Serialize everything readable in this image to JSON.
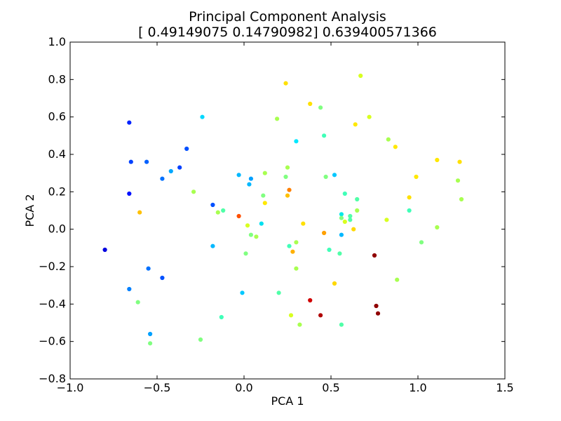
{
  "chart_data": {
    "type": "scatter",
    "title": "Principal Component Analysis",
    "subtitle": "[ 0.49149075  0.14790982] 0.639400571366",
    "xlabel": "PCA 1",
    "ylabel": "PCA 2",
    "xlim": [
      -1.0,
      1.5
    ],
    "ylim": [
      -0.8,
      1.0
    ],
    "grid": false,
    "xticks": [
      -1.0,
      -0.5,
      0.0,
      0.5,
      1.0,
      1.5
    ],
    "xtick_labels": [
      "−1.0",
      "−0.5",
      "0.0",
      "0.5",
      "1.0",
      "1.5"
    ],
    "yticks": [
      -0.8,
      -0.6,
      -0.4,
      -0.2,
      0.0,
      0.2,
      0.4,
      0.6,
      0.8,
      1.0
    ],
    "ytick_labels": [
      "−0.8",
      "−0.6",
      "−0.4",
      "−0.2",
      "0.0",
      "0.2",
      "0.4",
      "0.6",
      "0.8",
      "1.0"
    ],
    "colors": {
      "axes": "#000000",
      "background": "#ffffff"
    },
    "points": [
      {
        "x": -0.8,
        "y": -0.11,
        "color": "#0000e0"
      },
      {
        "x": -0.66,
        "y": 0.57,
        "color": "#0022ff"
      },
      {
        "x": -0.65,
        "y": 0.36,
        "color": "#0040ff"
      },
      {
        "x": -0.66,
        "y": 0.19,
        "color": "#0010ff"
      },
      {
        "x": -0.56,
        "y": 0.36,
        "color": "#0060ff"
      },
      {
        "x": -0.47,
        "y": 0.27,
        "color": "#0070ff"
      },
      {
        "x": -0.42,
        "y": 0.31,
        "color": "#00a8ff"
      },
      {
        "x": -0.37,
        "y": 0.33,
        "color": "#0040ff"
      },
      {
        "x": -0.33,
        "y": 0.43,
        "color": "#0050ff"
      },
      {
        "x": -0.24,
        "y": 0.6,
        "color": "#00d8ff"
      },
      {
        "x": -0.29,
        "y": 0.2,
        "color": "#a8ff50"
      },
      {
        "x": -0.18,
        "y": 0.13,
        "color": "#0050ff"
      },
      {
        "x": -0.15,
        "y": 0.09,
        "color": "#a8ff50"
      },
      {
        "x": -0.12,
        "y": 0.1,
        "color": "#50ffa8"
      },
      {
        "x": -0.6,
        "y": 0.09,
        "color": "#ffc000"
      },
      {
        "x": -0.55,
        "y": -0.21,
        "color": "#0070ff"
      },
      {
        "x": -0.47,
        "y": -0.26,
        "color": "#0050ff"
      },
      {
        "x": -0.66,
        "y": -0.32,
        "color": "#0080ff"
      },
      {
        "x": -0.61,
        "y": -0.39,
        "color": "#80ff80"
      },
      {
        "x": -0.54,
        "y": -0.56,
        "color": "#00a0ff"
      },
      {
        "x": -0.54,
        "y": -0.61,
        "color": "#80ff80"
      },
      {
        "x": -0.25,
        "y": -0.59,
        "color": "#80ff80"
      },
      {
        "x": -0.18,
        "y": -0.09,
        "color": "#00b8ff"
      },
      {
        "x": -0.13,
        "y": -0.47,
        "color": "#40ffb8"
      },
      {
        "x": -0.03,
        "y": 0.29,
        "color": "#00b8ff"
      },
      {
        "x": 0.03,
        "y": 0.24,
        "color": "#00b8ff"
      },
      {
        "x": 0.04,
        "y": 0.27,
        "color": "#00a0ff"
      },
      {
        "x": -0.03,
        "y": 0.07,
        "color": "#ff5000"
      },
      {
        "x": 0.02,
        "y": 0.02,
        "color": "#d8ff20"
      },
      {
        "x": 0.04,
        "y": -0.03,
        "color": "#80ff80"
      },
      {
        "x": 0.07,
        "y": -0.04,
        "color": "#a8ff50"
      },
      {
        "x": 0.1,
        "y": 0.03,
        "color": "#00e0f0"
      },
      {
        "x": 0.12,
        "y": 0.14,
        "color": "#ffe800"
      },
      {
        "x": 0.11,
        "y": 0.18,
        "color": "#80ff80"
      },
      {
        "x": 0.12,
        "y": 0.3,
        "color": "#a8ff50"
      },
      {
        "x": 0.01,
        "y": -0.13,
        "color": "#80ff80"
      },
      {
        "x": -0.01,
        "y": -0.34,
        "color": "#00c8ff"
      },
      {
        "x": 0.2,
        "y": -0.34,
        "color": "#50ffa8"
      },
      {
        "x": 0.19,
        "y": 0.59,
        "color": "#a8ff50"
      },
      {
        "x": 0.24,
        "y": 0.78,
        "color": "#ffe000"
      },
      {
        "x": 0.24,
        "y": 0.28,
        "color": "#80ff80"
      },
      {
        "x": 0.25,
        "y": 0.33,
        "color": "#a8ff50"
      },
      {
        "x": 0.26,
        "y": 0.21,
        "color": "#ff8000"
      },
      {
        "x": 0.25,
        "y": 0.18,
        "color": "#ffc000"
      },
      {
        "x": 0.3,
        "y": 0.47,
        "color": "#00e8ff"
      },
      {
        "x": 0.34,
        "y": 0.03,
        "color": "#ffe000"
      },
      {
        "x": 0.3,
        "y": -0.07,
        "color": "#a8ff50"
      },
      {
        "x": 0.26,
        "y": -0.09,
        "color": "#40ffb8"
      },
      {
        "x": 0.28,
        "y": -0.12,
        "color": "#ffb000"
      },
      {
        "x": 0.3,
        "y": -0.21,
        "color": "#a8ff50"
      },
      {
        "x": 0.38,
        "y": 0.67,
        "color": "#ffe000"
      },
      {
        "x": 0.44,
        "y": 0.65,
        "color": "#80ff80"
      },
      {
        "x": 0.46,
        "y": 0.5,
        "color": "#40ffb8"
      },
      {
        "x": 0.47,
        "y": 0.28,
        "color": "#80ff80"
      },
      {
        "x": 0.52,
        "y": 0.29,
        "color": "#00c8ff"
      },
      {
        "x": 0.46,
        "y": -0.02,
        "color": "#ffa000"
      },
      {
        "x": 0.49,
        "y": -0.11,
        "color": "#40ffb8"
      },
      {
        "x": 0.52,
        "y": -0.29,
        "color": "#ffd800"
      },
      {
        "x": 0.38,
        "y": -0.38,
        "color": "#d00000"
      },
      {
        "x": 0.44,
        "y": -0.46,
        "color": "#b00000"
      },
      {
        "x": 0.27,
        "y": -0.46,
        "color": "#d8ff20"
      },
      {
        "x": 0.32,
        "y": -0.51,
        "color": "#a8ff50"
      },
      {
        "x": 0.56,
        "y": -0.51,
        "color": "#50ffa8"
      },
      {
        "x": 0.55,
        "y": -0.13,
        "color": "#50ffa8"
      },
      {
        "x": 0.56,
        "y": 0.08,
        "color": "#00e8e8"
      },
      {
        "x": 0.56,
        "y": 0.06,
        "color": "#80ff80"
      },
      {
        "x": 0.58,
        "y": 0.04,
        "color": "#d8ff20"
      },
      {
        "x": 0.58,
        "y": 0.19,
        "color": "#40ffb8"
      },
      {
        "x": 0.61,
        "y": 0.07,
        "color": "#50ffa8"
      },
      {
        "x": 0.61,
        "y": 0.05,
        "color": "#50ffa8"
      },
      {
        "x": 0.63,
        "y": 0.0,
        "color": "#ffd800"
      },
      {
        "x": 0.56,
        "y": -0.03,
        "color": "#00b8ff"
      },
      {
        "x": 0.65,
        "y": 0.16,
        "color": "#50ffa8"
      },
      {
        "x": 0.65,
        "y": 0.1,
        "color": "#a8ff50"
      },
      {
        "x": 0.64,
        "y": 0.56,
        "color": "#ffe800"
      },
      {
        "x": 0.67,
        "y": 0.82,
        "color": "#d8ff20"
      },
      {
        "x": 0.72,
        "y": 0.6,
        "color": "#d8ff20"
      },
      {
        "x": 0.75,
        "y": -0.14,
        "color": "#900000"
      },
      {
        "x": 0.76,
        "y": -0.41,
        "color": "#900000"
      },
      {
        "x": 0.77,
        "y": -0.45,
        "color": "#900000"
      },
      {
        "x": 0.83,
        "y": 0.48,
        "color": "#a8ff50"
      },
      {
        "x": 0.87,
        "y": 0.44,
        "color": "#ffe800"
      },
      {
        "x": 0.82,
        "y": 0.05,
        "color": "#d8ff20"
      },
      {
        "x": 0.88,
        "y": -0.27,
        "color": "#a8ff50"
      },
      {
        "x": 0.95,
        "y": 0.17,
        "color": "#ffe000"
      },
      {
        "x": 0.95,
        "y": 0.1,
        "color": "#40ffb8"
      },
      {
        "x": 0.99,
        "y": 0.28,
        "color": "#ffe800"
      },
      {
        "x": 1.02,
        "y": -0.07,
        "color": "#80ff80"
      },
      {
        "x": 1.11,
        "y": 0.37,
        "color": "#ffe800"
      },
      {
        "x": 1.11,
        "y": 0.01,
        "color": "#a8ff50"
      },
      {
        "x": 1.23,
        "y": 0.26,
        "color": "#a8ff50"
      },
      {
        "x": 1.24,
        "y": 0.36,
        "color": "#ffe000"
      },
      {
        "x": 1.25,
        "y": 0.16,
        "color": "#a8ff50"
      }
    ]
  }
}
